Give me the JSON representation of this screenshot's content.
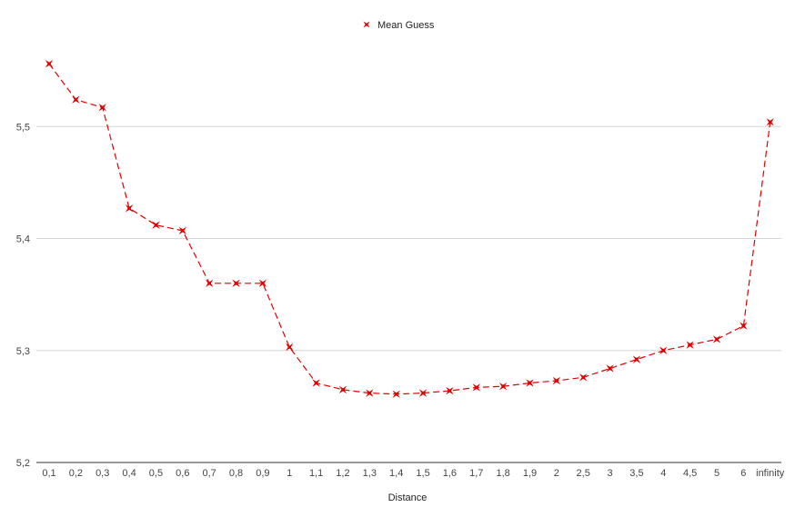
{
  "chart_data": {
    "type": "line",
    "title": "",
    "xlabel": "Distance",
    "ylabel": "",
    "ylim": [
      5.2,
      5.6
    ],
    "yticks": [
      "5,2",
      "5,3",
      "5,4",
      "5,5"
    ],
    "grid": true,
    "legend_position": "top-center",
    "categories": [
      "0,1",
      "0,2",
      "0,3",
      "0,4",
      "0,5",
      "0,6",
      "0,7",
      "0,8",
      "0,9",
      "1",
      "1,1",
      "1,2",
      "1,3",
      "1,4",
      "1,5",
      "1,6",
      "1,7",
      "1,8",
      "1,9",
      "2",
      "2,5",
      "3",
      "3,5",
      "4",
      "4,5",
      "5",
      "6",
      "infinity"
    ],
    "series": [
      {
        "name": "Mean Guess",
        "color": "#e00000",
        "marker": "x-star",
        "line_style": "dashed",
        "values": [
          5.556,
          5.524,
          5.517,
          5.427,
          5.412,
          5.407,
          5.36,
          5.36,
          5.36,
          5.303,
          5.271,
          5.265,
          5.262,
          5.261,
          5.262,
          5.264,
          5.267,
          5.268,
          5.271,
          5.273,
          5.276,
          5.284,
          5.292,
          5.3,
          5.305,
          5.31,
          5.322,
          5.504
        ]
      }
    ]
  }
}
